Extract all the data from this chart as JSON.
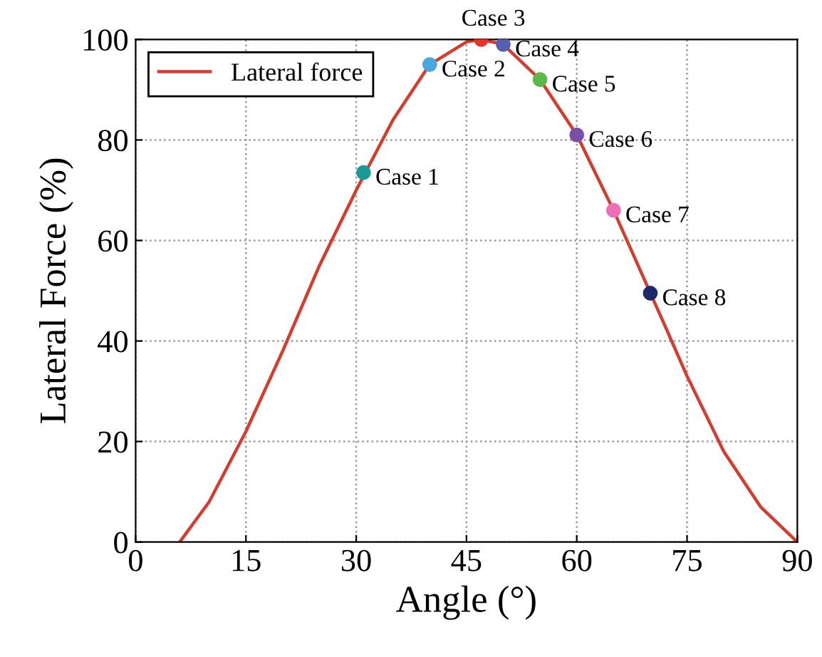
{
  "chart_data": {
    "type": "line",
    "xlabel": "Angle (°)",
    "ylabel": "Lateral Force (%)",
    "xlim": [
      0,
      90
    ],
    "ylim": [
      0,
      100
    ],
    "xticks": [
      0,
      15,
      30,
      45,
      60,
      75,
      90
    ],
    "yticks": [
      0,
      20,
      40,
      60,
      80,
      100
    ],
    "grid": true,
    "legend": "top left",
    "line_style": "solid",
    "marker": "none",
    "series": [
      {
        "name": "Lateral force",
        "color": "#d93a2b",
        "x": [
          6,
          10,
          15,
          20,
          25,
          30,
          35,
          40,
          45,
          47,
          50,
          55,
          60,
          65,
          72,
          75,
          80,
          85,
          90
        ],
        "values": [
          0,
          8,
          22,
          38,
          55,
          70,
          84,
          95,
          99.5,
          100,
          99,
          92,
          81,
          66,
          43,
          33,
          18,
          7,
          0
        ]
      },
      {
        "type": "scatter",
        "marker": "circle",
        "x": [
          31,
          40,
          47,
          50,
          55,
          60,
          65,
          70
        ],
        "values": [
          73.5,
          95,
          100,
          99,
          92,
          81,
          66,
          49.5
        ],
        "colors": [
          "#1a9a96",
          "#4aa8e0",
          "#e8332a",
          "#5560b0",
          "#5cb84a",
          "#7a4fa8",
          "#ee6fb8",
          "#1c2a6a"
        ]
      }
    ],
    "annotations": [
      {
        "text": "Case 1",
        "x": 31,
        "y": 73.5
      },
      {
        "text": "Case 2",
        "x": 40,
        "y": 95
      },
      {
        "text": "Case 3",
        "x": 47,
        "y": 100
      },
      {
        "text": "Case 4",
        "x": 50,
        "y": 99
      },
      {
        "text": "Case 5",
        "x": 55,
        "y": 92
      },
      {
        "text": "Case 6",
        "x": 60,
        "y": 81
      },
      {
        "text": "Case 7",
        "x": 65,
        "y": 66
      },
      {
        "text": "Case 8",
        "x": 70,
        "y": 49.5
      }
    ]
  }
}
